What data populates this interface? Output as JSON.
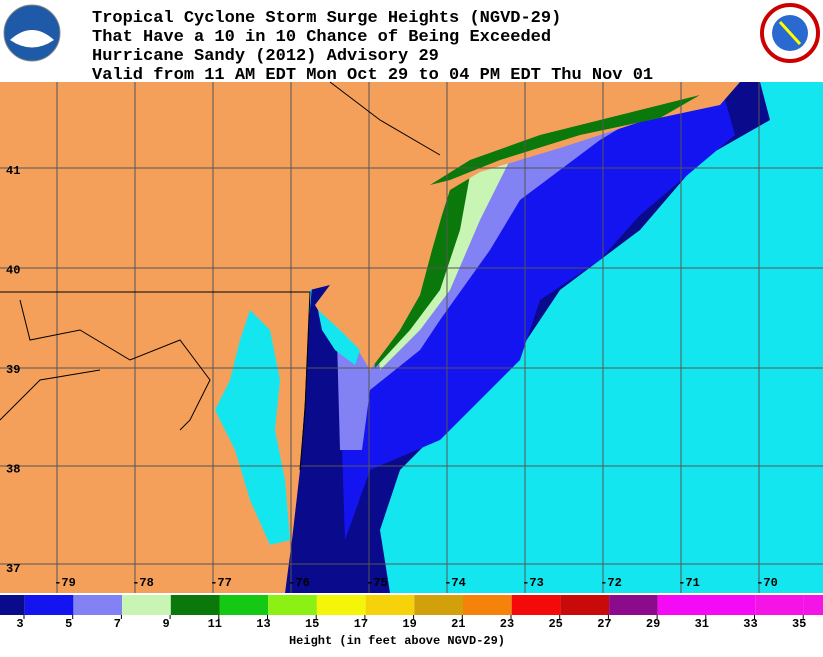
{
  "header": {
    "lines": [
      "Tropical Cyclone Storm Surge Heights (NGVD-29)",
      "That Have a 10 in 10 Chance of Being Exceeded",
      "Hurricane Sandy (2012) Advisory 29",
      "Valid from 11 AM EDT Mon Oct 29 to 04 PM EDT Thu Nov 01"
    ]
  },
  "map": {
    "lat_labels": [
      "41",
      "40",
      "39",
      "38",
      "37"
    ],
    "lon_labels": [
      "-79",
      "-78",
      "-77",
      "-76",
      "-75",
      "-74",
      "-73",
      "-72",
      "-71",
      "-70"
    ]
  },
  "legend": {
    "ticks": [
      "3",
      "5",
      "7",
      "9",
      "11",
      "13",
      "15",
      "17",
      "19",
      "21",
      "23",
      "25",
      "27",
      "29",
      "31",
      "33",
      "35"
    ],
    "colors": [
      "#0a0a8c",
      "#1414f0",
      "#8282f5",
      "#c8f5b4",
      "#0a780a",
      "#14c814",
      "#8cf014",
      "#f5f50a",
      "#f5d20a",
      "#d2a00a",
      "#f5820a",
      "#f50a0a",
      "#c80a0a",
      "#8c0a8c",
      "#f50af5",
      "#f50af5",
      "#f514e6"
    ],
    "title": "Height (in feet above NGVD-29)"
  }
}
